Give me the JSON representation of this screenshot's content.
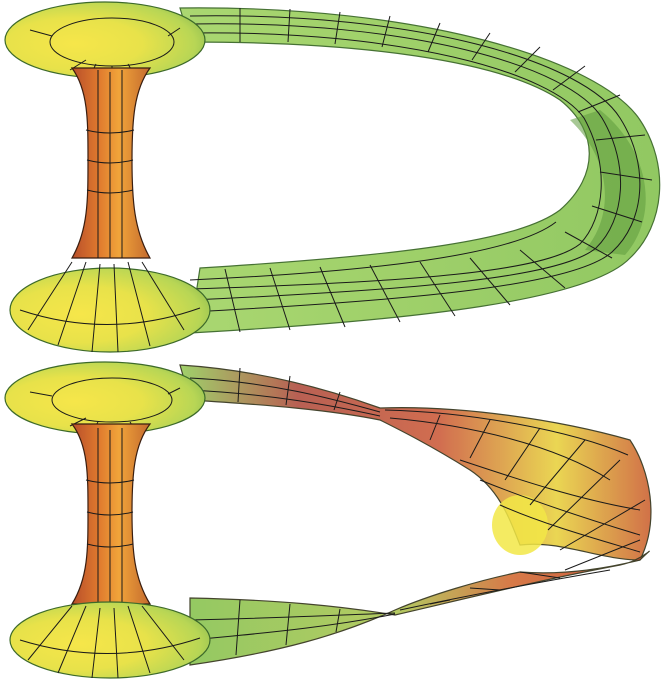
{
  "figure": {
    "panels": [
      {
        "id": "upper",
        "subject": "wormhole-throat-with-untwisted-band",
        "band_twist": "none"
      },
      {
        "id": "lower",
        "subject": "wormhole-throat-with-twisted-band",
        "band_twist": "half-twist"
      }
    ],
    "colors": {
      "background": "#ffffff",
      "green": "#9ccf5e",
      "green_dark": "#5f9c3a",
      "yellow": "#f2ea3a",
      "orange": "#e8962f",
      "red": "#c9593a",
      "grid": "#1a1a1a"
    }
  }
}
